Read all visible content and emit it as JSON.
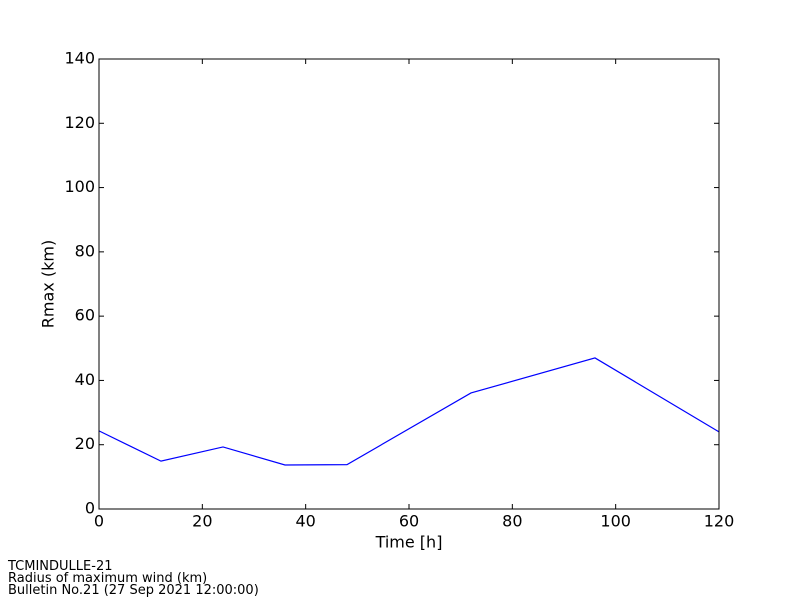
{
  "chart_data": {
    "type": "line",
    "x": [
      0,
      12,
      24,
      36,
      48,
      72,
      96,
      120
    ],
    "series": [
      {
        "name": "Rmax",
        "color": "#0000ff",
        "values": [
          24.3,
          14.9,
          19.3,
          13.7,
          13.8,
          36.1,
          47.0,
          24.0
        ]
      }
    ],
    "xlabel": "Time [h]",
    "ylabel": "Rmax (km)",
    "xlim": [
      0,
      120
    ],
    "xticks": [
      0,
      20,
      40,
      60,
      80,
      100,
      120
    ],
    "ylim": [
      0,
      140
    ],
    "yticks": [
      0,
      20,
      40,
      60,
      80,
      100,
      120,
      140
    ],
    "grid": false,
    "notes": [
      "TCMINDULLE-21",
      "Radius of maximum wind (km)",
      "Bulletin No.21 (27 Sep 2021  12:00:00)"
    ]
  }
}
